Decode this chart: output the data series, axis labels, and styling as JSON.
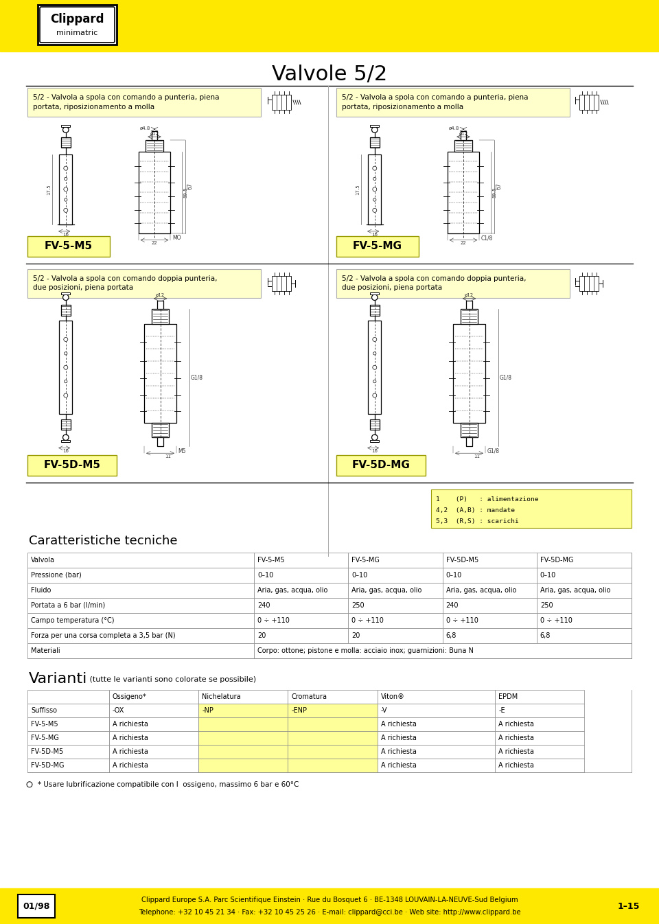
{
  "title": "Valvole 5/2",
  "bg_color": "#FFFFFF",
  "header_bg": "#FFE800",
  "page_width": 9.6,
  "page_height": 13.46,
  "logo_text1": "Clippard",
  "logo_text2": "minimatric",
  "top_left_label": "FV-5-M5",
  "top_right_label": "FV-5-MG",
  "bottom_left_label": "FV-5D-M5",
  "bottom_right_label": "FV-5D-MG",
  "desc_top_left": "5/2 - Valvola a spola con comando a punteria, piena\nportata, riposizionamento a molla",
  "desc_top_right": "5/2 - Valvola a spola con comando a punteria, piena\nportata, riposizionamento a molla",
  "desc_bottom_left": "5/2 - Valvola a spola con comando doppia punteria,\ndue posizioni, piena portata",
  "desc_bottom_right": "5/2 - Valvola a spola con comando doppia punteria,\ndue posizioni, piena portata",
  "legend_lines": [
    "1    (P)   : alimentazione",
    "4,2  (A,B) : mandate",
    "5,3  (R,S) : scarichi"
  ],
  "car_title": "Caratteristiche tecniche",
  "tech_headers": [
    "Valvola",
    "FV-5-M5",
    "FV-5-MG",
    "FV-5D-M5",
    "FV-5D-MG"
  ],
  "tech_rows": [
    [
      "Pressione (bar)",
      "0–10",
      "0–10",
      "0–10",
      "0–10"
    ],
    [
      "Fluido",
      "Aria, gas, acqua, olio",
      "Aria, gas, acqua, olio",
      "Aria, gas, acqua, olio",
      "Aria, gas, acqua, olio"
    ],
    [
      "Portata a 6 bar (l/min)",
      "240",
      "250",
      "240",
      "250"
    ],
    [
      "Campo temperatura (°C)",
      "0 ÷ +110",
      "0 ÷ +110",
      "0 ÷ +110",
      "0 ÷ +110"
    ],
    [
      "Forza per una corsa completa a 3,5 bar (N)",
      "20",
      "20",
      "6,8",
      "6,8"
    ],
    [
      "Materiali",
      "Corpo: ottone; pistone e molla: acciaio inox; guarnizioni: Buna N",
      "",
      "",
      ""
    ]
  ],
  "var_title": "Varianti",
  "var_subtitle": " (tutte le varianti sono colorate se possibile)",
  "var_headers": [
    "",
    "Ossigeno*",
    "Nichelatura",
    "Cromatura",
    "Viton®",
    "EPDM"
  ],
  "var_rows": [
    [
      "Suffisso",
      "-OX",
      "-NP",
      "-ENP",
      "-V",
      "-E"
    ],
    [
      "FV-5-M5",
      "A richiesta",
      "",
      "",
      "A richiesta",
      "A richiesta"
    ],
    [
      "FV-5-MG",
      "A richiesta",
      "",
      "",
      "A richiesta",
      "A richiesta"
    ],
    [
      "FV-5D-M5",
      "A richiesta",
      "",
      "",
      "A richiesta",
      "A richiesta"
    ],
    [
      "FV-5D-MG",
      "A richiesta",
      "",
      "",
      "A richiesta",
      "A richiesta"
    ]
  ],
  "footnote": "* Usare lubrificazione compatibile con l  ossigeno, massimo 6 bar e 60°C",
  "footer_date": "01/98",
  "footer_company": "Clippard Europe S.A. Parc Scientifique Einstein · Rue du Bosquet 6 · BE-1348 LOUVAIN-LA-NEUVE-Sud Belgium",
  "footer_tel": "Telephone: +32 10 45 21 34 · Fax: +32 10 45 25 26 · E-mail: clippard@cci.be · Web site: http://www.clippard.be",
  "footer_page": "1–15",
  "label_bg": "#FFFF99",
  "yellow_light": "#FFFFCC",
  "divider_color": "#000000",
  "table_border": "#888888"
}
